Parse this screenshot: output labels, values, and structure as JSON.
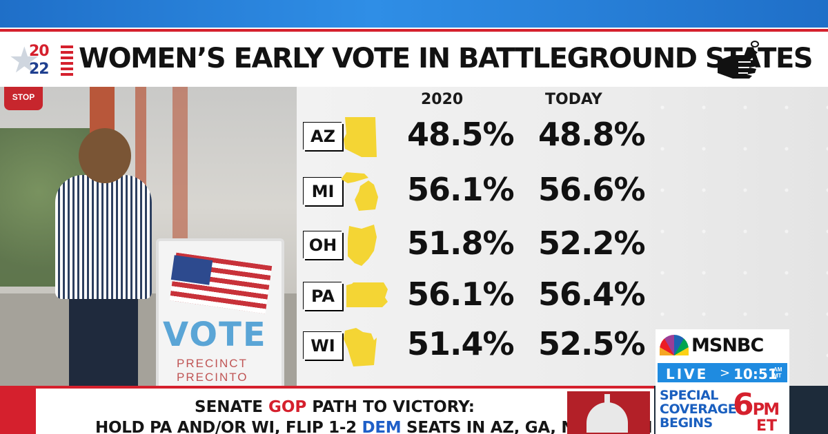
{
  "header": {
    "logo_top": "20",
    "logo_bottom": "22",
    "title": "WOMEN’S EARLY VOTE IN BATTLEGROUND STATES",
    "icon": "hand-ballot-icon"
  },
  "photo": {
    "stop_sign_text": "STOP",
    "sign_word": "VOTE",
    "sign_line1": "PRECINCT",
    "sign_line2": "PRECINTO"
  },
  "table": {
    "columns": [
      "2020",
      "TODAY"
    ],
    "rows": [
      {
        "state": "AZ",
        "v2020": "48.5%",
        "today": "48.8%"
      },
      {
        "state": "MI",
        "v2020": "56.1%",
        "today": "56.6%"
      },
      {
        "state": "OH",
        "v2020": "51.8%",
        "today": "52.2%"
      },
      {
        "state": "PA",
        "v2020": "56.1%",
        "today": "56.4%"
      },
      {
        "state": "WI",
        "v2020": "51.4%",
        "today": "52.5%"
      }
    ],
    "shape_color": "#f4d534"
  },
  "ticker": {
    "line1_a": "SENATE ",
    "line1_gop": "GOP",
    "line1_b": " PATH TO VICTORY:",
    "line2_a": "HOLD PA AND/OR WI, FLIP 1-2 ",
    "line2_dem": "DEM",
    "line2_b": " SEATS IN AZ, GA, NV, OR NH"
  },
  "network": {
    "name": "MSNBC",
    "live": "LIVE",
    "arrow": ">",
    "time": "10:51",
    "ampm_top": "AM",
    "ampm_bottom": "MT",
    "special_1": "SPECIAL",
    "special_2": "COVERAGE",
    "special_3": "BEGINS",
    "special_time": "6",
    "special_pm": "PM",
    "special_et": "ET"
  },
  "colors": {
    "accent_red": "#d5202d",
    "accent_blue": "#1f8be0",
    "state_yellow": "#f4d534"
  }
}
